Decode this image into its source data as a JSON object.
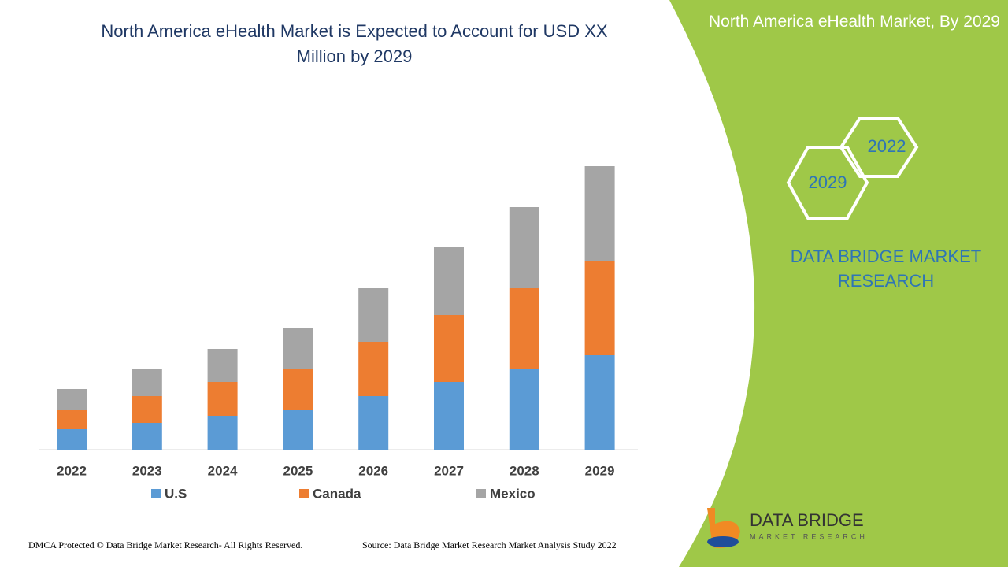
{
  "chart_data": {
    "type": "stacked-bar",
    "title": "North America eHealth Market is Expected to Account for USD XX Million by 2029",
    "categories": [
      "2022",
      "2023",
      "2024",
      "2025",
      "2026",
      "2027",
      "2028",
      "2029"
    ],
    "series": [
      {
        "name": "U.S",
        "color": "#5b9bd5",
        "values": [
          26,
          34,
          43,
          51,
          68,
          86,
          103,
          120
        ]
      },
      {
        "name": "Canada",
        "color": "#ed7d31",
        "values": [
          25,
          34,
          43,
          52,
          69,
          85,
          102,
          120
        ]
      },
      {
        "name": "Mexico",
        "color": "#a5a5a5",
        "values": [
          26,
          35,
          42,
          51,
          68,
          86,
          103,
          120
        ]
      }
    ]
  },
  "side_panel": {
    "title": "North America eHealth Market, By 2029",
    "hex_front": "2022",
    "hex_back": "2029",
    "brand": "DATA BRIDGE MARKET RESEARCH"
  },
  "logo": {
    "name": "DATA BRIDGE",
    "tagline": "MARKET RESEARCH"
  },
  "footer": {
    "copyright": "DMCA Protected © Data Bridge Market Research- All Rights Reserved.",
    "source": "Source: Data Bridge Market Research Market Analysis Study 2022"
  }
}
